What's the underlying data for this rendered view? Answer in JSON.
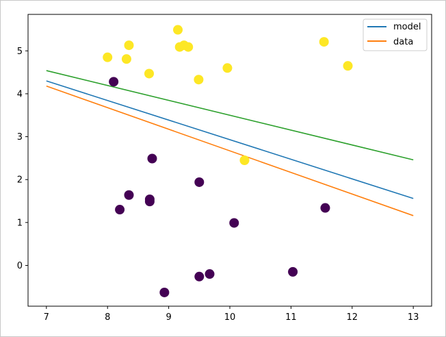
{
  "chart_data": {
    "type": "scatter",
    "title": "",
    "xlabel": "",
    "ylabel": "",
    "xlim": [
      6.7,
      13.3
    ],
    "ylim": [
      -0.95,
      5.85
    ],
    "xticks": [
      7,
      8,
      9,
      10,
      11,
      12,
      13
    ],
    "yticks": [
      0,
      1,
      2,
      3,
      4,
      5
    ],
    "grid": false,
    "legend_position": "top-right",
    "colors": {
      "class_0": "#440154",
      "class_1": "#fde725",
      "model": "#1f77b4",
      "data": "#ff7f0e",
      "third_line": "#2ca02c"
    },
    "points": [
      {
        "x": 8.1,
        "y": 4.28,
        "class": 0
      },
      {
        "x": 8.73,
        "y": 2.49,
        "class": 0
      },
      {
        "x": 8.35,
        "y": 1.64,
        "class": 0
      },
      {
        "x": 8.2,
        "y": 1.3,
        "class": 0
      },
      {
        "x": 8.69,
        "y": 1.54,
        "class": 0
      },
      {
        "x": 8.69,
        "y": 1.49,
        "class": 0
      },
      {
        "x": 9.5,
        "y": 1.94,
        "class": 0
      },
      {
        "x": 10.07,
        "y": 0.99,
        "class": 0
      },
      {
        "x": 11.56,
        "y": 1.34,
        "class": 0
      },
      {
        "x": 9.5,
        "y": -0.26,
        "class": 0
      },
      {
        "x": 9.67,
        "y": -0.2,
        "class": 0
      },
      {
        "x": 8.93,
        "y": -0.63,
        "class": 0
      },
      {
        "x": 11.03,
        "y": -0.15,
        "class": 0
      },
      {
        "x": 8.0,
        "y": 4.85,
        "class": 1
      },
      {
        "x": 8.35,
        "y": 5.13,
        "class": 1
      },
      {
        "x": 8.31,
        "y": 4.81,
        "class": 1
      },
      {
        "x": 8.68,
        "y": 4.47,
        "class": 1
      },
      {
        "x": 9.15,
        "y": 5.49,
        "class": 1
      },
      {
        "x": 9.18,
        "y": 5.09,
        "class": 1
      },
      {
        "x": 9.25,
        "y": 5.13,
        "class": 1
      },
      {
        "x": 9.32,
        "y": 5.09,
        "class": 1
      },
      {
        "x": 9.49,
        "y": 4.33,
        "class": 1
      },
      {
        "x": 9.96,
        "y": 4.6,
        "class": 1
      },
      {
        "x": 10.24,
        "y": 2.45,
        "class": 1
      },
      {
        "x": 11.54,
        "y": 5.21,
        "class": 1
      },
      {
        "x": 11.93,
        "y": 4.65,
        "class": 1
      }
    ],
    "series": [
      {
        "name": "model",
        "color": "#1f77b4",
        "x": [
          7,
          13
        ],
        "y": [
          4.3,
          1.56
        ]
      },
      {
        "name": "data",
        "color": "#ff7f0e",
        "x": [
          7,
          13
        ],
        "y": [
          4.18,
          1.16
        ]
      },
      {
        "name": "",
        "color": "#2ca02c",
        "x": [
          7,
          13
        ],
        "y": [
          4.54,
          2.46
        ]
      }
    ],
    "legend": [
      "model",
      "data"
    ]
  }
}
